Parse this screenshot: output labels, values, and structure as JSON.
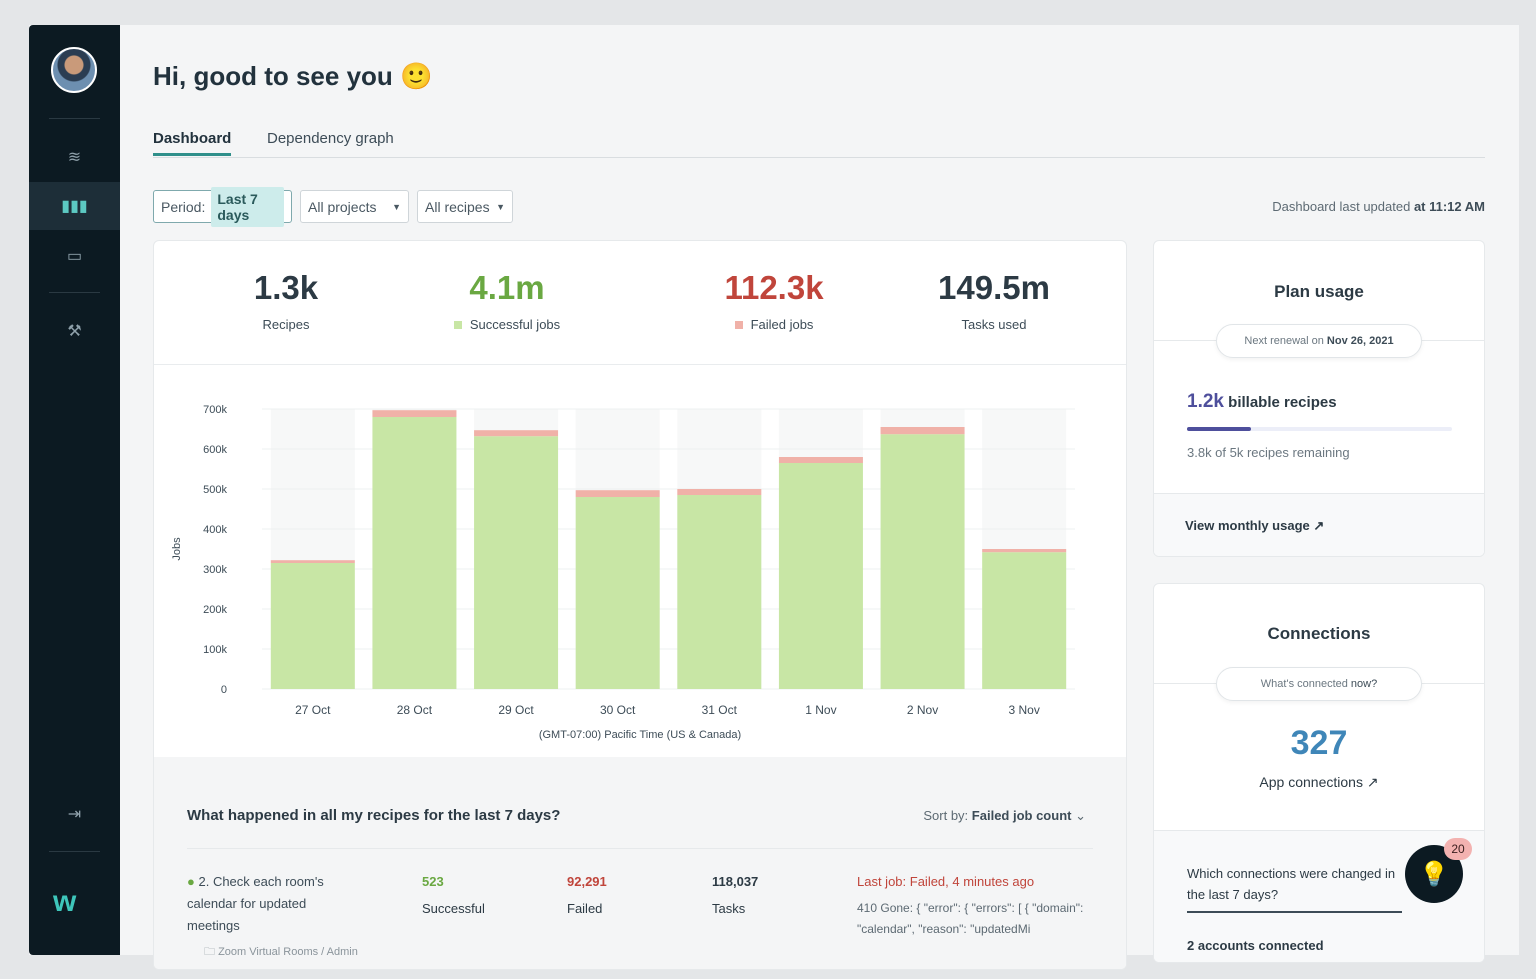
{
  "greeting": "Hi, good to see you 🙂",
  "tabs": [
    {
      "label": "Dashboard",
      "active": true
    },
    {
      "label": "Dependency graph",
      "active": false
    }
  ],
  "filters": {
    "period_label": "Period:",
    "period_value": "Last 7 days",
    "projects": "All projects",
    "recipes": "All recipes"
  },
  "updated": {
    "prefix": "Dashboard last updated",
    "time": "at 11:12 AM"
  },
  "stats": [
    {
      "value": "1.3k",
      "label": "Recipes",
      "color": "#2c3a44"
    },
    {
      "value": "4.1m",
      "label": "Successful jobs",
      "color": "#6aa842",
      "swatch": "#c8e6a5"
    },
    {
      "value": "112.3k",
      "label": "Failed jobs",
      "color": "#c0453b",
      "swatch": "#f0b1a8"
    },
    {
      "value": "149.5m",
      "label": "Tasks used",
      "color": "#2c3a44"
    }
  ],
  "chart_data": {
    "type": "bar",
    "stacked": true,
    "categories": [
      "27 Oct",
      "28 Oct",
      "29 Oct",
      "30 Oct",
      "31 Oct",
      "1 Nov",
      "2 Nov",
      "3 Nov"
    ],
    "series": [
      {
        "name": "Successful jobs",
        "color": "#c8e6a5",
        "values": [
          315000,
          680000,
          632000,
          480000,
          485000,
          565000,
          637000,
          342000
        ]
      },
      {
        "name": "Failed jobs",
        "color": "#f0b1a8",
        "values": [
          7000,
          17000,
          15000,
          17000,
          15000,
          15000,
          18000,
          8000
        ]
      }
    ],
    "ylabel": "Jobs",
    "xlabel": "(GMT-07:00) Pacific Time (US & Canada)",
    "ylim": [
      0,
      700000
    ],
    "yticks": [
      "0",
      "100k",
      "200k",
      "300k",
      "400k",
      "500k",
      "600k",
      "700k"
    ],
    "grid": true
  },
  "list": {
    "title": "What happened in all my recipes for the last 7 days?",
    "sort_label": "Sort by:",
    "sort_value": "Failed job count",
    "rows": [
      {
        "name": "2. Check each room's calendar for updated meetings",
        "successful": "523",
        "successful_label": "Successful",
        "failed": "92,291",
        "failed_label": "Failed",
        "tasks": "118,037",
        "tasks_label": "Tasks",
        "last_job": "Last job: Failed, 4 minutes ago",
        "error": "410 Gone: { \"error\": { \"errors\": [ { \"domain\": \"calendar\", \"reason\": \"updatedMi",
        "folder": "Zoom Virtual Rooms / Admin"
      }
    ]
  },
  "plan": {
    "title": "Plan usage",
    "renewal_prefix": "Next renewal on",
    "renewal_date": "Nov 26, 2021",
    "billable_value": "1.2k",
    "billable_label": "billable recipes",
    "usage_fraction": 0.24,
    "remaining": "3.8k of 5k recipes remaining",
    "link": "View monthly usage"
  },
  "connections": {
    "title": "Connections",
    "pill_prefix": "What's connected",
    "pill_bold": "now?",
    "count": "327",
    "label": "App connections",
    "question": "Which connections were changed in the last 7 days?",
    "accounts": "2 accounts connected"
  },
  "notification_count": "20"
}
